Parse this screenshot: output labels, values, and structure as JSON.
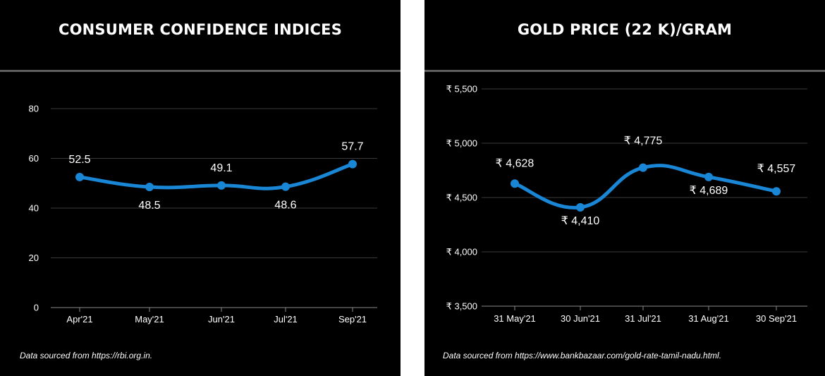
{
  "colors": {
    "line": "#1a86d6",
    "grid": "#3a3a3a",
    "text": "#ffffff",
    "background": "#000000",
    "rule": "#5e5e5e"
  },
  "chart_data": [
    {
      "type": "line",
      "title": "CONSUMER CONFIDENCE INDICES",
      "categories": [
        "Apr'21",
        "May'21",
        "Jun'21",
        "Jul'21",
        "Sep'21"
      ],
      "values": [
        52.5,
        48.5,
        49.1,
        48.6,
        57.7
      ],
      "data_labels": [
        "52.5",
        "48.5",
        "49.1",
        "48.6",
        "57.7"
      ],
      "yticks": [
        "80",
        "60",
        "40",
        "20",
        "0"
      ],
      "ylim": [
        0,
        80
      ],
      "grid": true,
      "source": "Data sourced from https://rbi.org.in."
    },
    {
      "type": "line",
      "title": "GOLD PRICE (22 K)/GRAM",
      "categories": [
        "31 May'21",
        "30 Jun'21",
        "31 Jul'21",
        "31 Aug'21",
        "30 Sep'21"
      ],
      "values": [
        4628,
        4410,
        4775,
        4689,
        4557
      ],
      "data_labels": [
        "₹ 4,628",
        "₹ 4,410",
        "₹ 4,775",
        "₹ 4,689",
        "₹ 4,557"
      ],
      "yticks": [
        "₹ 5,500",
        "₹ 5,000",
        "₹ 4,500",
        "₹ 4,000",
        "₹ 3,500"
      ],
      "ylim": [
        3500,
        5500
      ],
      "grid": true,
      "source": "Data sourced from https://www.bankbazaar.com/gold-rate-tamil-nadu.html."
    }
  ]
}
